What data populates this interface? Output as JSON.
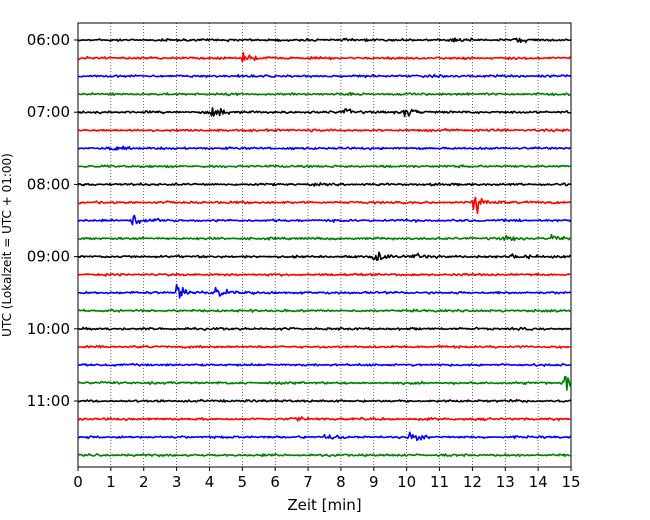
{
  "chart_data": {
    "type": "line",
    "chart_kind": "helicorder",
    "xlabel": "Zeit  [min]",
    "ylabel": "UTC (Lokalzeit = UTC + 01:00)",
    "xlim": [
      0,
      15
    ],
    "x_ticks": [
      "0",
      "1",
      "2",
      "3",
      "4",
      "5",
      "6",
      "7",
      "8",
      "9",
      "10",
      "11",
      "12",
      "13",
      "14",
      "15"
    ],
    "y_tick_labels": [
      "06:00",
      "07:00",
      "08:00",
      "09:00",
      "10:00",
      "11:00"
    ],
    "traces_per_hour": 4,
    "trace_count": 24,
    "minutes_per_trace": 15,
    "grid": "vertical dotted lines at each minute",
    "trace_colors": [
      "#000000",
      "#ff0000",
      "#0000ff",
      "#008000"
    ],
    "events": [
      {
        "trace": 1,
        "minute": 5.0,
        "amp": 0.7
      },
      {
        "trace": 4,
        "minute": 4.1,
        "amp": 1.3
      },
      {
        "trace": 4,
        "minute": 9.9,
        "amp": 1.0
      },
      {
        "trace": 4,
        "minute": 8.1,
        "amp": 0.5
      },
      {
        "trace": 6,
        "minute": 1.0,
        "amp": 0.5
      },
      {
        "trace": 0,
        "minute": 13.3,
        "amp": 0.5
      },
      {
        "trace": 0,
        "minute": 11.3,
        "amp": 0.4
      },
      {
        "trace": 9,
        "minute": 12.05,
        "amp": 2.2
      },
      {
        "trace": 10,
        "minute": 1.65,
        "amp": 1.6
      },
      {
        "trace": 11,
        "minute": 13.0,
        "amp": 0.5
      },
      {
        "trace": 11,
        "minute": 14.4,
        "amp": 0.5
      },
      {
        "trace": 12,
        "minute": 9.0,
        "amp": 1.1
      },
      {
        "trace": 12,
        "minute": 13.2,
        "amp": 0.8
      },
      {
        "trace": 12,
        "minute": 10.2,
        "amp": 0.5
      },
      {
        "trace": 14,
        "minute": 3.0,
        "amp": 1.6
      },
      {
        "trace": 14,
        "minute": 4.2,
        "amp": 1.0
      },
      {
        "trace": 19,
        "minute": 14.8,
        "amp": 1.5
      },
      {
        "trace": 21,
        "minute": 6.5,
        "amp": 0.4
      },
      {
        "trace": 22,
        "minute": 7.5,
        "amp": 0.6
      },
      {
        "trace": 22,
        "minute": 10.1,
        "amp": 0.9
      }
    ]
  }
}
